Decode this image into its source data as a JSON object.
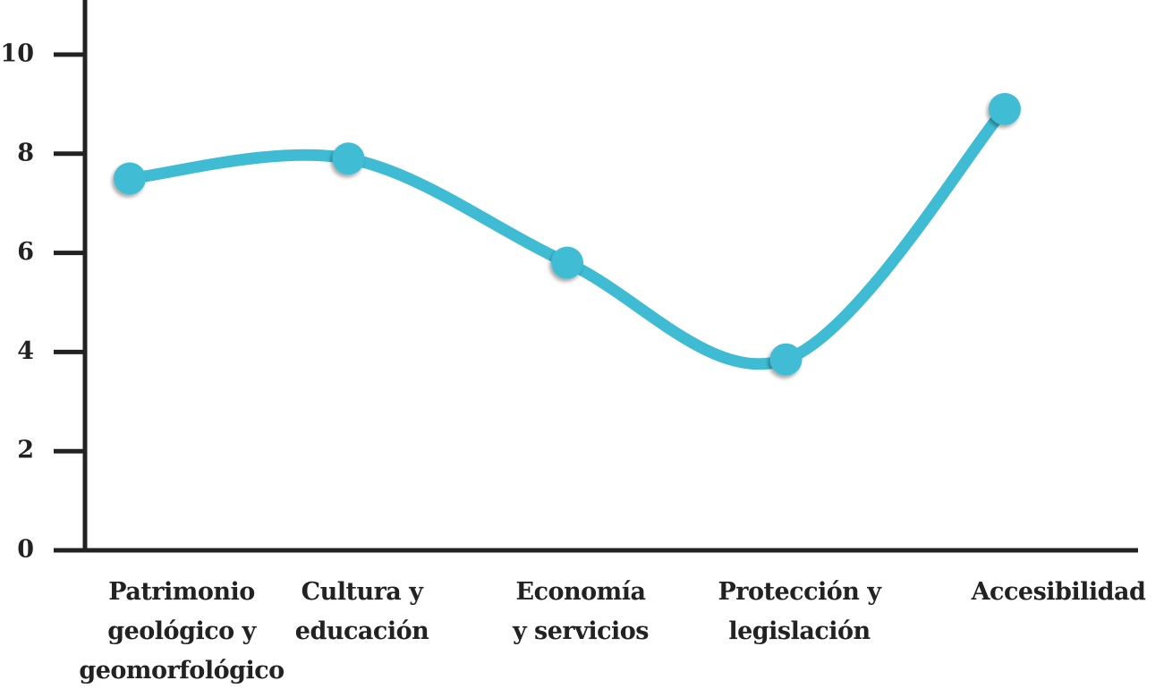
{
  "chart_data": {
    "type": "line",
    "categories": [
      "Patrimonio\ngeológico y\ngeomorfológico",
      "Cultura y\neducación",
      "Economía\ny servicios",
      "Protección y\nlegislación",
      "Accesibilidad"
    ],
    "values": [
      7.5,
      7.9,
      5.8,
      3.85,
      8.9
    ],
    "color": "#3fbcd4",
    "ylim": [
      0,
      11.1
    ],
    "yticks": [
      0,
      2,
      4,
      6,
      8,
      10
    ]
  }
}
